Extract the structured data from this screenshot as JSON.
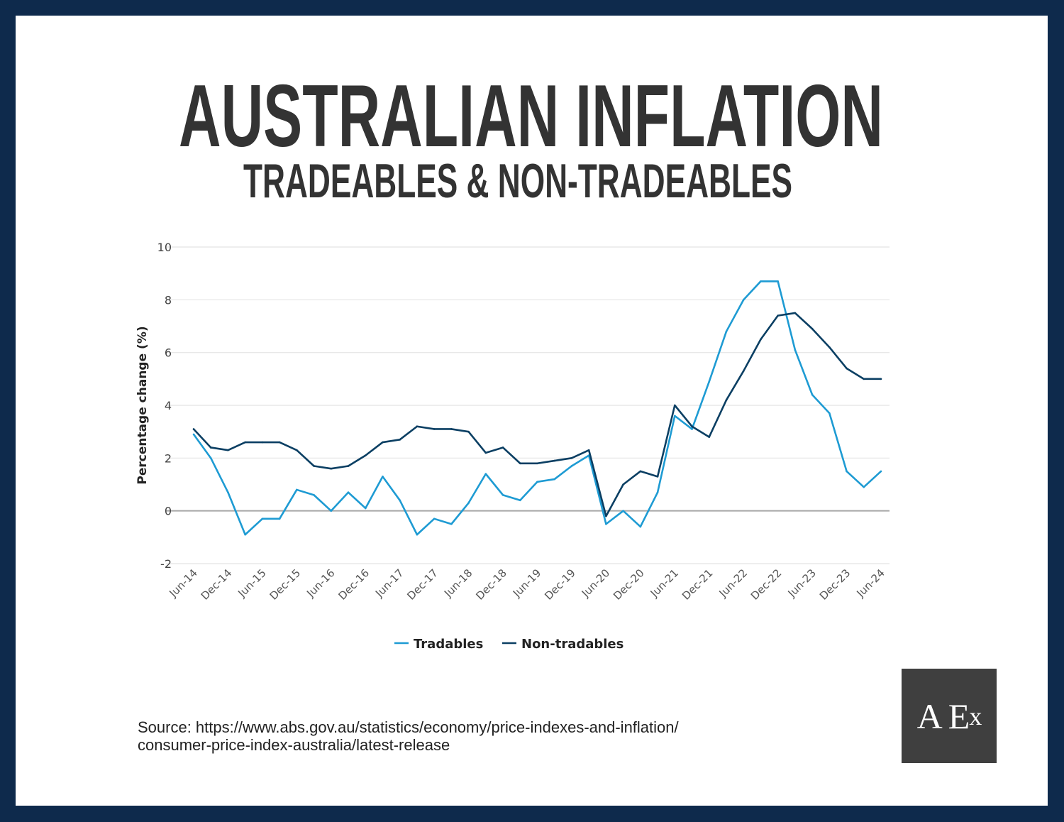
{
  "title": "AUSTRALIAN INFLATION",
  "subtitle": "TRADEABLES & NON-TRADEABLES",
  "source_line1": "Source: https://www.abs.gov.au/statistics/economy/price-indexes-and-inflation/",
  "source_line2": "consumer-price-index-australia/latest-release",
  "logo_text": "AEx",
  "colors": {
    "frame": "#0e2a4c",
    "tradables": "#1e9bd3",
    "non_tradables": "#0b3f63",
    "title": "#333333",
    "logo_bg": "#3f3f3f"
  },
  "chart_data": {
    "type": "line",
    "title": "",
    "xlabel": "",
    "ylabel": "Percentage change (%)",
    "ylim": [
      -2,
      10
    ],
    "yticks": [
      -2,
      0,
      2,
      4,
      6,
      8,
      10
    ],
    "grid": true,
    "legend": "bottom-center",
    "x_tick_labels": [
      "Jun-14",
      "Dec-14",
      "Jun-15",
      "Dec-15",
      "Jun-16",
      "Dec-16",
      "Jun-17",
      "Dec-17",
      "Jun-18",
      "Dec-18",
      "Jun-19",
      "Dec-19",
      "Jun-20",
      "Dec-20",
      "Jun-21",
      "Dec-21",
      "Jun-22",
      "Dec-22",
      "Jun-23",
      "Dec-23",
      "Jun-24"
    ],
    "x": [
      "Jun-14",
      "Sep-14",
      "Dec-14",
      "Mar-15",
      "Jun-15",
      "Sep-15",
      "Dec-15",
      "Mar-16",
      "Jun-16",
      "Sep-16",
      "Dec-16",
      "Mar-17",
      "Jun-17",
      "Sep-17",
      "Dec-17",
      "Mar-18",
      "Jun-18",
      "Sep-18",
      "Dec-18",
      "Mar-19",
      "Jun-19",
      "Sep-19",
      "Dec-19",
      "Mar-20",
      "Jun-20",
      "Sep-20",
      "Dec-20",
      "Mar-21",
      "Jun-21",
      "Sep-21",
      "Dec-21",
      "Mar-22",
      "Jun-22",
      "Sep-22",
      "Dec-22",
      "Mar-23",
      "Jun-23",
      "Sep-23",
      "Dec-23",
      "Mar-24",
      "Jun-24"
    ],
    "series": [
      {
        "name": "Tradables",
        "color": "#1e9bd3",
        "values": [
          2.9,
          2.0,
          0.7,
          -0.9,
          -0.3,
          -0.3,
          0.8,
          0.6,
          0.0,
          0.7,
          0.1,
          1.3,
          0.4,
          -0.9,
          -0.3,
          -0.5,
          0.3,
          1.4,
          0.6,
          0.4,
          1.1,
          1.2,
          1.7,
          2.1,
          -0.5,
          0.0,
          -0.6,
          0.7,
          3.6,
          3.1,
          4.9,
          6.8,
          8.0,
          8.7,
          8.7,
          6.1,
          4.4,
          3.7,
          1.5,
          0.9,
          1.5
        ]
      },
      {
        "name": "Non-tradables",
        "color": "#0b3f63",
        "values": [
          3.1,
          2.4,
          2.3,
          2.6,
          2.6,
          2.6,
          2.3,
          1.7,
          1.6,
          1.7,
          2.1,
          2.6,
          2.7,
          3.2,
          3.1,
          3.1,
          3.0,
          2.2,
          2.4,
          1.8,
          1.8,
          1.9,
          2.0,
          2.3,
          -0.2,
          1.0,
          1.5,
          1.3,
          4.0,
          3.2,
          2.8,
          4.2,
          5.3,
          6.5,
          7.4,
          7.5,
          6.9,
          6.2,
          5.4,
          5.0,
          5.0
        ]
      }
    ]
  }
}
